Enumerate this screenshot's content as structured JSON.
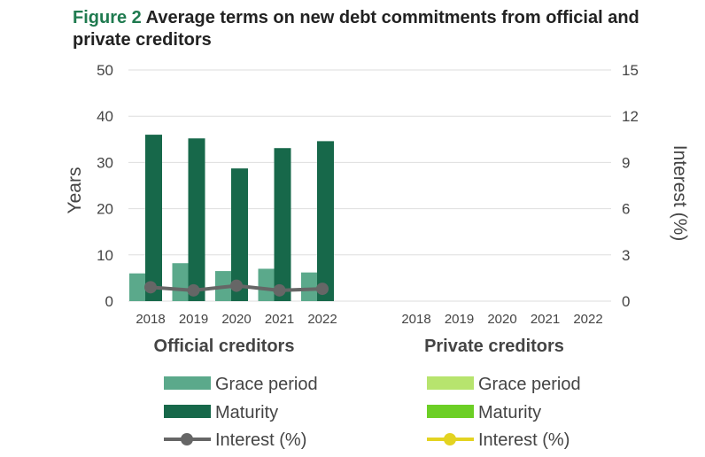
{
  "title": {
    "figure_label": "Figure 2",
    "text": "Average terms on new debt commitments from official and private creditors"
  },
  "chart_data": {
    "type": "bar",
    "left_axis": {
      "label": "Years",
      "range": [
        0,
        50
      ],
      "ticks": [
        "0",
        "10",
        "20",
        "30",
        "40",
        "50"
      ]
    },
    "right_axis": {
      "label": "Interest (%)",
      "range": [
        0,
        15
      ],
      "ticks": [
        "0",
        "3",
        "6",
        "9",
        "12",
        "15"
      ]
    },
    "grid": true,
    "groups": [
      {
        "name": "Official creditors",
        "categories": [
          "2018",
          "2019",
          "2020",
          "2021",
          "2022"
        ],
        "series": [
          {
            "name": "Grace period",
            "type": "bar",
            "axis": "left",
            "color": "#5ba98b",
            "values": [
              6,
              8.2,
              6.5,
              7,
              6.2
            ]
          },
          {
            "name": "Maturity",
            "type": "bar",
            "axis": "left",
            "color": "#17684a",
            "values": [
              36,
              35.2,
              28.7,
              33.1,
              34.6
            ]
          },
          {
            "name": "Interest (%)",
            "type": "line",
            "axis": "right",
            "color": "#666666",
            "values": [
              0.9,
              0.7,
              1.0,
              0.7,
              0.8
            ]
          }
        ]
      },
      {
        "name": "Private creditors",
        "categories": [
          "2018",
          "2019",
          "2020",
          "2021",
          "2022"
        ],
        "series": [
          {
            "name": "Grace period",
            "type": "bar",
            "axis": "left",
            "color": "#b7e46e",
            "values": []
          },
          {
            "name": "Maturity",
            "type": "bar",
            "axis": "left",
            "color": "#6ccf25",
            "values": []
          },
          {
            "name": "Interest (%)",
            "type": "line",
            "axis": "right",
            "color": "#e3d321",
            "values": []
          }
        ]
      }
    ],
    "legend_placement": "bottom"
  }
}
